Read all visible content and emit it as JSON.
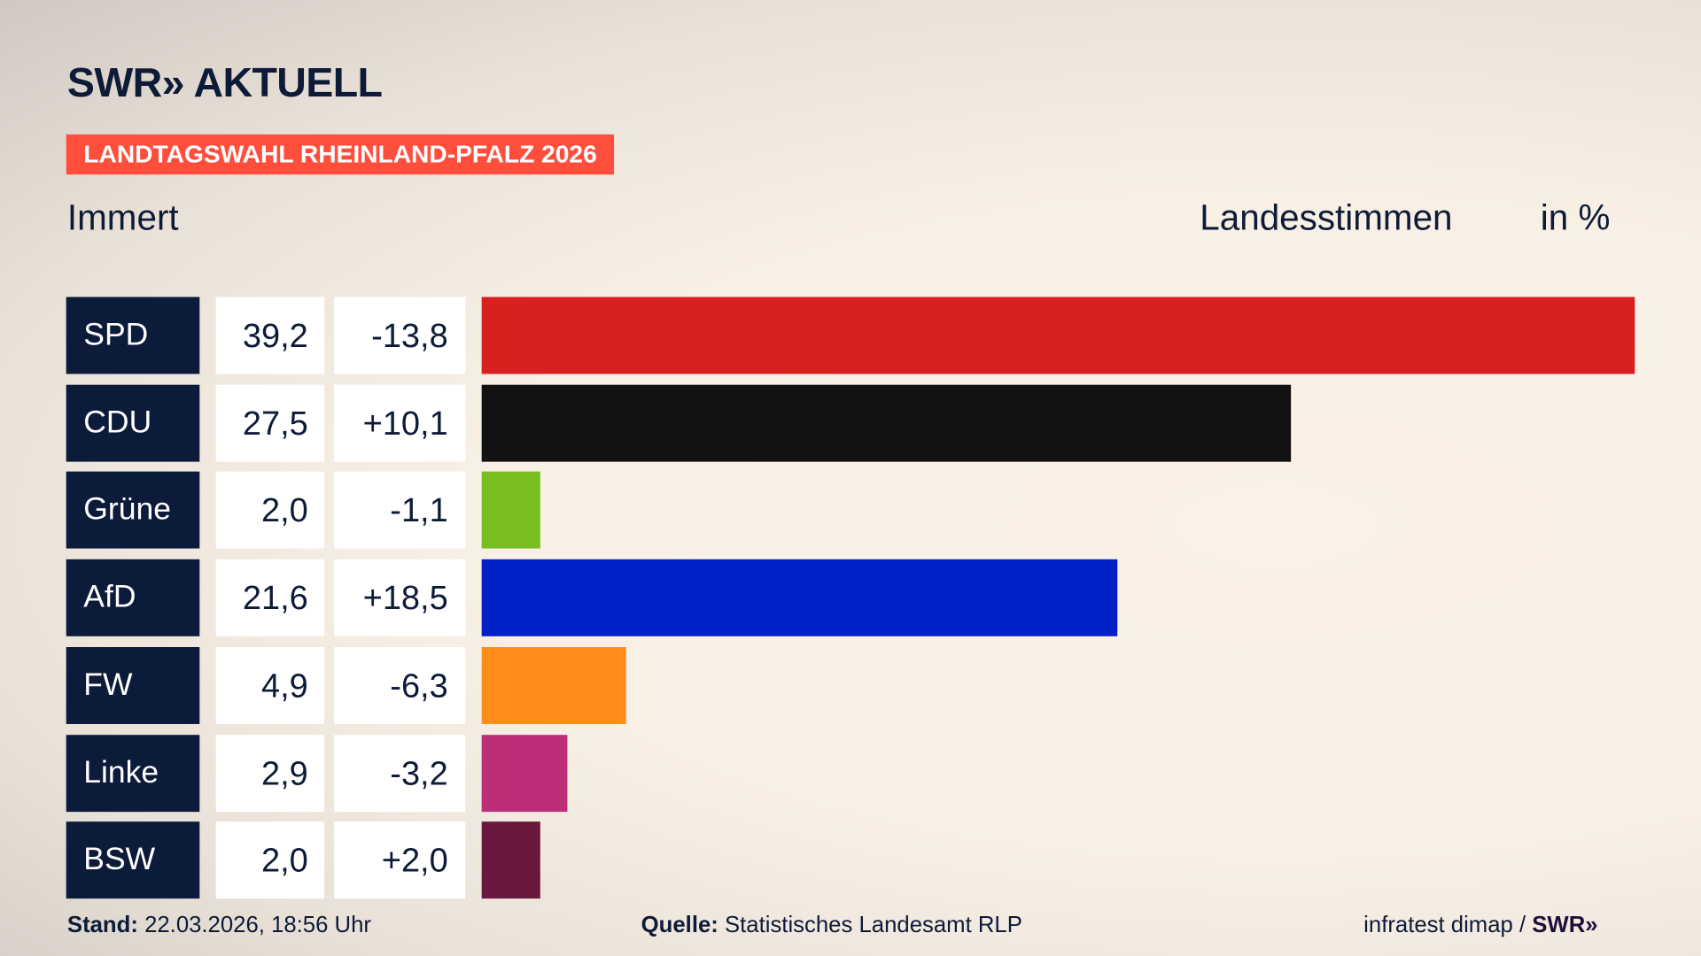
{
  "header": {
    "logo": "SWR» AKTUELL",
    "banner": "LANDTAGSWAHL RHEINLAND-PFALZ 2026",
    "location": "Immert",
    "measure": "Landesstimmen",
    "unit": "in %"
  },
  "chart_data": {
    "type": "bar",
    "orientation": "horizontal",
    "categories": [
      "SPD",
      "CDU",
      "Grüne",
      "AfD",
      "FW",
      "Linke",
      "BSW"
    ],
    "values": [
      39.2,
      27.5,
      2.0,
      21.6,
      4.9,
      2.9,
      2.0
    ],
    "value_labels": [
      "39,2",
      "27,5",
      "2,0",
      "21,6",
      "4,9",
      "2,9",
      "2,0"
    ],
    "diff_labels": [
      "-13,8",
      "+10,1",
      "-1,1",
      "+18,5",
      "-6,3",
      "-3,2",
      "+2,0"
    ],
    "colors": [
      "#d82020",
      "#121212",
      "#78be1e",
      "#0020c8",
      "#ff8c19",
      "#bc2f77",
      "#6a173e"
    ],
    "xlim": [
      0,
      39.2
    ]
  },
  "footer": {
    "stand_label": "Stand:",
    "stand_value": "22.03.2026, 18:56 Uhr",
    "source_label": "Quelle:",
    "source_value": "Statistisches Landesamt RLP",
    "credit": "infratest dimap / ",
    "credit_logo": "SWR»"
  }
}
